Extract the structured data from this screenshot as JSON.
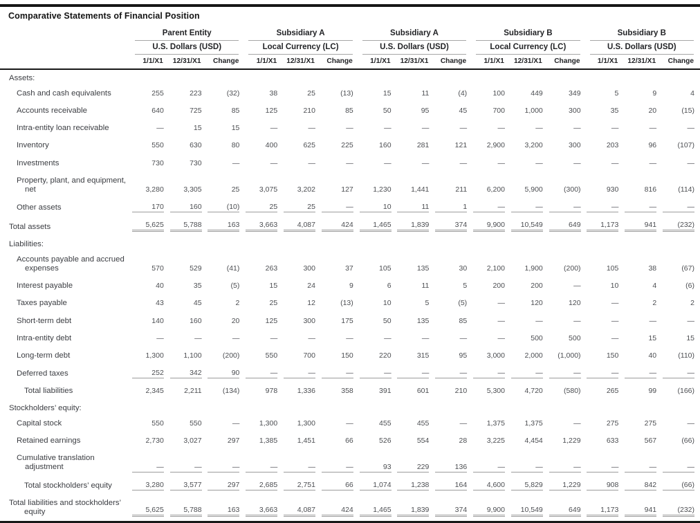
{
  "title": "Comparative Statements of Financial Position",
  "colors": {
    "rule_heavy": "#171717",
    "rule_light": "#a6a6a6",
    "rule_total": "#9b9b9b",
    "text_heading": "#222326",
    "text_label": "#3b3d42",
    "text_value": "#4c4e52"
  },
  "table": {
    "groups": [
      {
        "entity": "Parent Entity",
        "currency": "U.S. Dollars (USD)"
      },
      {
        "entity": "Subsidiary A",
        "currency": "Local Currency (LC)"
      },
      {
        "entity": "Subsidiary A",
        "currency": "U.S. Dollars (USD)"
      },
      {
        "entity": "Subsidiary B",
        "currency": "Local Currency (LC)"
      },
      {
        "entity": "Subsidiary B",
        "currency": "U.S. Dollars (USD)"
      }
    ],
    "period_headers": [
      "1/1/X1",
      "12/31/X1",
      "Change"
    ],
    "rows": [
      {
        "type": "section",
        "label": "Assets:"
      },
      {
        "label": "Cash and cash equivalents",
        "indent": 1,
        "rule": "none",
        "values": [
          "255",
          "223",
          "(32)",
          "38",
          "25",
          "(13)",
          "15",
          "11",
          "(4)",
          "100",
          "449",
          "349",
          "5",
          "9",
          "4"
        ]
      },
      {
        "label": "Accounts receivable",
        "indent": 1,
        "rule": "none",
        "values": [
          "640",
          "725",
          "85",
          "125",
          "210",
          "85",
          "50",
          "95",
          "45",
          "700",
          "1,000",
          "300",
          "35",
          "20",
          "(15)"
        ]
      },
      {
        "label": "Intra-entity loan receivable",
        "indent": 1,
        "rule": "none",
        "values": [
          "—",
          "15",
          "15",
          "—",
          "—",
          "—",
          "—",
          "—",
          "—",
          "—",
          "—",
          "—",
          "—",
          "—",
          "—"
        ]
      },
      {
        "label": "Inventory",
        "indent": 1,
        "rule": "none",
        "values": [
          "550",
          "630",
          "80",
          "400",
          "625",
          "225",
          "160",
          "281",
          "121",
          "2,900",
          "3,200",
          "300",
          "203",
          "96",
          "(107)"
        ]
      },
      {
        "label": "Investments",
        "indent": 1,
        "rule": "none",
        "values": [
          "730",
          "730",
          "—",
          "—",
          "—",
          "—",
          "—",
          "—",
          "—",
          "—",
          "—",
          "—",
          "—",
          "—",
          "—"
        ]
      },
      {
        "label": "Property, plant, and equipment,\nnet",
        "indent": 1,
        "rule": "none",
        "values": [
          "3,280",
          "3,305",
          "25",
          "3,075",
          "3,202",
          "127",
          "1,230",
          "1,441",
          "211",
          "6,200",
          "5,900",
          "(300)",
          "930",
          "816",
          "(114)"
        ]
      },
      {
        "label": "Other assets",
        "indent": 1,
        "rule": "single",
        "values": [
          "170",
          "160",
          "(10)",
          "25",
          "25",
          "—",
          "10",
          "11",
          "1",
          "—",
          "—",
          "—",
          "—",
          "—",
          "—"
        ]
      },
      {
        "label": "Total assets",
        "indent": 0,
        "rule": "double",
        "values": [
          "5,625",
          "5,788",
          "163",
          "3,663",
          "4,087",
          "424",
          "1,465",
          "1,839",
          "374",
          "9,900",
          "10,549",
          "649",
          "1,173",
          "941",
          "(232)"
        ]
      },
      {
        "type": "section",
        "label": "Liabilities:"
      },
      {
        "label": "Accounts payable and accrued\nexpenses",
        "indent": 1,
        "rule": "none",
        "values": [
          "570",
          "529",
          "(41)",
          "263",
          "300",
          "37",
          "105",
          "135",
          "30",
          "2,100",
          "1,900",
          "(200)",
          "105",
          "38",
          "(67)"
        ]
      },
      {
        "label": "Interest payable",
        "indent": 1,
        "rule": "none",
        "values": [
          "40",
          "35",
          "(5)",
          "15",
          "24",
          "9",
          "6",
          "11",
          "5",
          "200",
          "200",
          "—",
          "10",
          "4",
          "(6)"
        ]
      },
      {
        "label": "Taxes payable",
        "indent": 1,
        "rule": "none",
        "values": [
          "43",
          "45",
          "2",
          "25",
          "12",
          "(13)",
          "10",
          "5",
          "(5)",
          "—",
          "120",
          "120",
          "—",
          "2",
          "2"
        ]
      },
      {
        "label": "Short-term debt",
        "indent": 1,
        "rule": "none",
        "values": [
          "140",
          "160",
          "20",
          "125",
          "300",
          "175",
          "50",
          "135",
          "85",
          "—",
          "—",
          "—",
          "—",
          "—",
          "—"
        ]
      },
      {
        "label": "Intra-entity debt",
        "indent": 1,
        "rule": "none",
        "values": [
          "—",
          "—",
          "—",
          "—",
          "—",
          "—",
          "—",
          "—",
          "—",
          "—",
          "500",
          "500",
          "—",
          "15",
          "15"
        ]
      },
      {
        "label": "Long-term debt",
        "indent": 1,
        "rule": "none",
        "values": [
          "1,300",
          "1,100",
          "(200)",
          "550",
          "700",
          "150",
          "220",
          "315",
          "95",
          "3,000",
          "2,000",
          "(1,000)",
          "150",
          "40",
          "(110)"
        ]
      },
      {
        "label": "Deferred taxes",
        "indent": 1,
        "rule": "single",
        "values": [
          "252",
          "342",
          "90",
          "—",
          "—",
          "—",
          "—",
          "—",
          "—",
          "—",
          "—",
          "—",
          "—",
          "—",
          "—"
        ]
      },
      {
        "label": "Total liabilities",
        "indent": 2,
        "rule": "none",
        "values": [
          "2,345",
          "2,211",
          "(134)",
          "978",
          "1,336",
          "358",
          "391",
          "601",
          "210",
          "5,300",
          "4,720",
          "(580)",
          "265",
          "99",
          "(166)"
        ]
      },
      {
        "type": "section",
        "label": "Stockholders’ equity:"
      },
      {
        "label": "Capital stock",
        "indent": 1,
        "rule": "none",
        "values": [
          "550",
          "550",
          "—",
          "1,300",
          "1,300",
          "—",
          "455",
          "455",
          "—",
          "1,375",
          "1,375",
          "—",
          "275",
          "275",
          "—"
        ]
      },
      {
        "label": "Retained earnings",
        "indent": 1,
        "rule": "none",
        "values": [
          "2,730",
          "3,027",
          "297",
          "1,385",
          "1,451",
          "66",
          "526",
          "554",
          "28",
          "3,225",
          "4,454",
          "1,229",
          "633",
          "567",
          "(66)"
        ]
      },
      {
        "label": "Cumulative translation\nadjustment",
        "indent": 1,
        "rule": "single",
        "values": [
          "—",
          "—",
          "—",
          "—",
          "—",
          "—",
          "93",
          "229",
          "136",
          "—",
          "—",
          "—",
          "—",
          "—",
          "—"
        ]
      },
      {
        "label": "Total stockholders’ equity",
        "indent": 2,
        "rule": "single",
        "values": [
          "3,280",
          "3,577",
          "297",
          "2,685",
          "2,751",
          "66",
          "1,074",
          "1,238",
          "164",
          "4,600",
          "5,829",
          "1,229",
          "908",
          "842",
          "(66)"
        ]
      },
      {
        "label": "Total liabilities and stockholders’\nequity",
        "indent": 0,
        "hang": 22,
        "rule": "double",
        "values": [
          "5,625",
          "5,788",
          "163",
          "3,663",
          "4,087",
          "424",
          "1,465",
          "1,839",
          "374",
          "9,900",
          "10,549",
          "649",
          "1,173",
          "941",
          "(232)"
        ]
      }
    ]
  }
}
